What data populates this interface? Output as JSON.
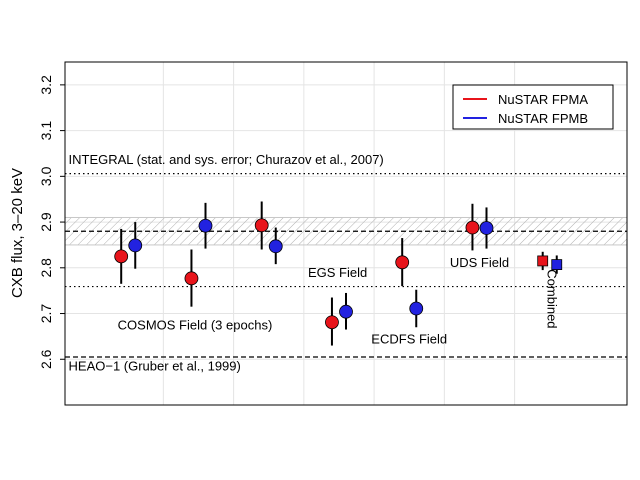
{
  "chart_data": {
    "type": "scatter",
    "title": "",
    "xlabel": "",
    "ylabel": "CXB flux, 3–20 keV",
    "ylim": [
      2.5,
      3.25
    ],
    "xlim": [
      0,
      8
    ],
    "yticks": [
      "2.6",
      "2.7",
      "2.8",
      "2.9",
      "3.0",
      "3.1",
      "3.2"
    ],
    "grid": true,
    "legend_position": "top-right",
    "series": [
      {
        "name": "NuSTAR FPMA",
        "color": "#e8141b",
        "points": [
          {
            "x": 0.8,
            "y": 2.825,
            "lo": 2.765,
            "hi": 2.885,
            "marker": "circle"
          },
          {
            "x": 1.8,
            "y": 2.777,
            "lo": 2.715,
            "hi": 2.84,
            "marker": "circle"
          },
          {
            "x": 2.8,
            "y": 2.893,
            "lo": 2.84,
            "hi": 2.945,
            "marker": "circle"
          },
          {
            "x": 3.8,
            "y": 2.681,
            "lo": 2.63,
            "hi": 2.735,
            "marker": "circle"
          },
          {
            "x": 4.8,
            "y": 2.812,
            "lo": 2.76,
            "hi": 2.865,
            "marker": "circle"
          },
          {
            "x": 5.8,
            "y": 2.888,
            "lo": 2.838,
            "hi": 2.94,
            "marker": "circle"
          },
          {
            "x": 6.8,
            "y": 2.815,
            "lo": 2.795,
            "hi": 2.835,
            "marker": "square"
          }
        ]
      },
      {
        "name": "NuSTAR FPMB",
        "color": "#2222e0",
        "points": [
          {
            "x": 1.0,
            "y": 2.849,
            "lo": 2.798,
            "hi": 2.9,
            "marker": "circle"
          },
          {
            "x": 2.0,
            "y": 2.892,
            "lo": 2.842,
            "hi": 2.942,
            "marker": "circle"
          },
          {
            "x": 3.0,
            "y": 2.847,
            "lo": 2.808,
            "hi": 2.888,
            "marker": "circle"
          },
          {
            "x": 4.0,
            "y": 2.704,
            "lo": 2.665,
            "hi": 2.745,
            "marker": "circle"
          },
          {
            "x": 5.0,
            "y": 2.711,
            "lo": 2.67,
            "hi": 2.752,
            "marker": "circle"
          },
          {
            "x": 6.0,
            "y": 2.887,
            "lo": 2.842,
            "hi": 2.932,
            "marker": "circle"
          },
          {
            "x": 7.0,
            "y": 2.807,
            "lo": 2.787,
            "hi": 2.827,
            "marker": "square"
          }
        ]
      }
    ],
    "reference_lines": [
      {
        "y": 3.006,
        "style": "dotted"
      },
      {
        "y": 2.759,
        "style": "dotted"
      },
      {
        "y": 2.88,
        "style": "dashed"
      },
      {
        "y": 2.605,
        "style": "dashed"
      }
    ],
    "reference_band": {
      "lo": 2.85,
      "hi": 2.91
    },
    "vgrid_x": [
      1.4,
      2.4,
      3.4,
      4.4,
      5.4,
      6.4
    ],
    "annotations": [
      {
        "text": "INTEGRAL (stat. and sys. error; Churazov et al., 2007)",
        "x": 0.05,
        "y": 3.027,
        "anchor": "start",
        "rotate": 0
      },
      {
        "text": "HEAO−1 (Gruber et al., 1999)",
        "x": 0.05,
        "y": 2.575,
        "anchor": "start",
        "rotate": 0
      },
      {
        "text": "COSMOS Field (3 epochs)",
        "x": 1.85,
        "y": 2.665,
        "anchor": "middle",
        "rotate": 0
      },
      {
        "text": "EGS Field",
        "x": 3.88,
        "y": 2.78,
        "anchor": "middle",
        "rotate": 0
      },
      {
        "text": "ECDFS Field",
        "x": 4.9,
        "y": 2.634,
        "anchor": "middle",
        "rotate": 0
      },
      {
        "text": "UDS Field",
        "x": 5.9,
        "y": 2.802,
        "anchor": "middle",
        "rotate": 0
      },
      {
        "text": "Combined",
        "x": 6.92,
        "y": 2.732,
        "anchor": "middle",
        "rotate": 90
      }
    ]
  }
}
